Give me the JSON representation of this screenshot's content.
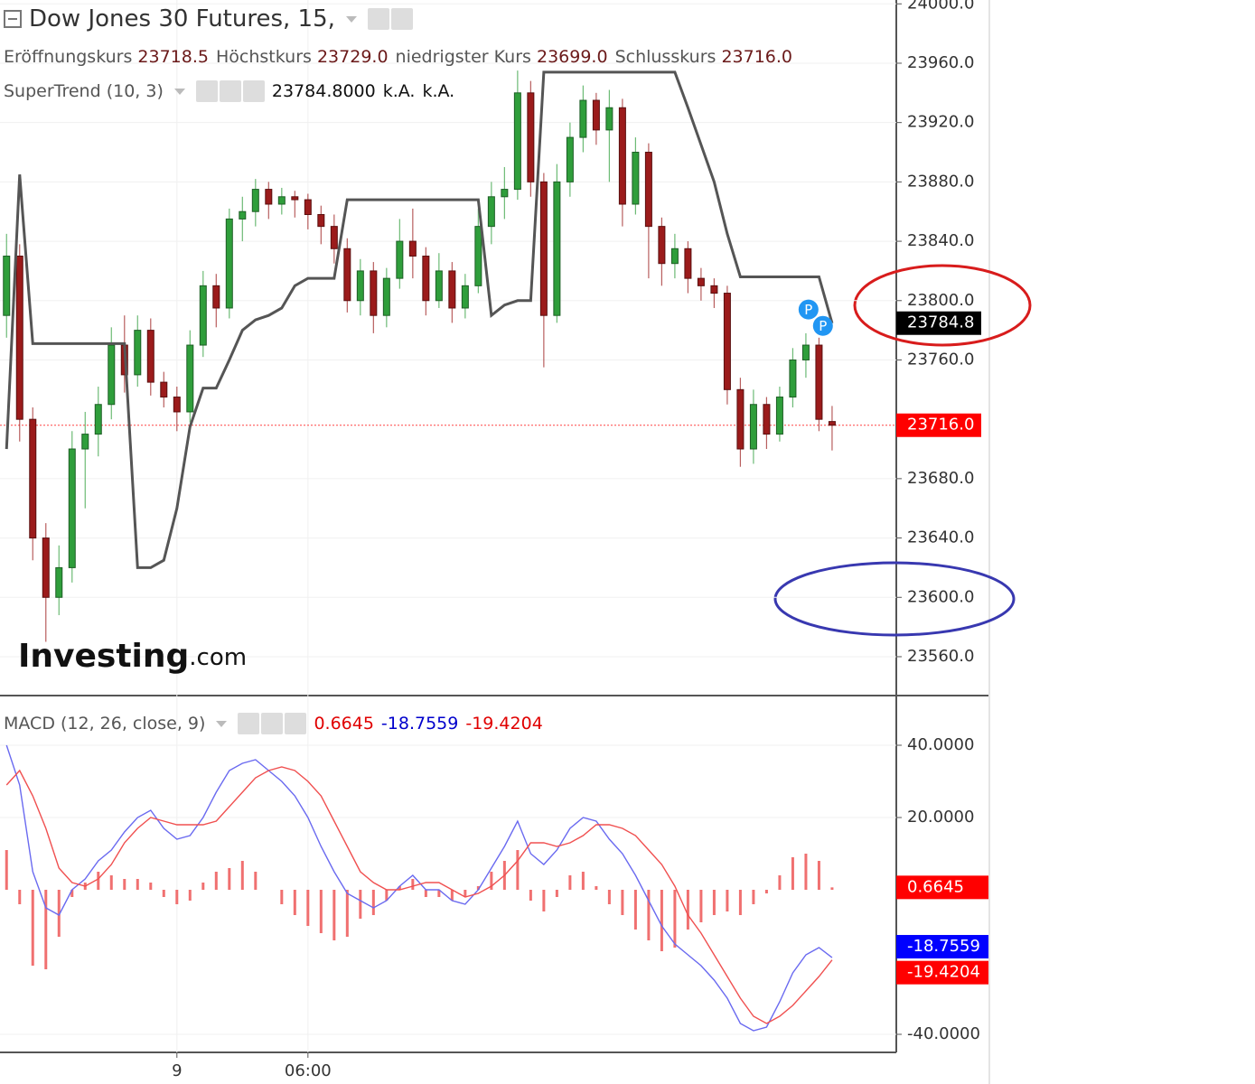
{
  "chart_data": [
    {
      "type": "candlestick",
      "title": "Dow Jones 30 Futures, 15,",
      "ohlc_legend": [
        [
          "Eröffnungskurs",
          "23718.5"
        ],
        [
          "Höchstkurs",
          "23729.0"
        ],
        [
          "niedrigster Kurs",
          "23699.0"
        ],
        [
          "Schlusskurs",
          "23716.0"
        ]
      ],
      "x": [
        0,
        1,
        2,
        3,
        4,
        5,
        6,
        7,
        8,
        9,
        10,
        11,
        12,
        13,
        14,
        15,
        16,
        17,
        18,
        19,
        20,
        21,
        22,
        23,
        24,
        25,
        26,
        27,
        28,
        29,
        30,
        31,
        32,
        33,
        34,
        35,
        36,
        37,
        38,
        39,
        40,
        41,
        42,
        43,
        44,
        45,
        46,
        47,
        48,
        49,
        50,
        51,
        52,
        53,
        54,
        55,
        56,
        57,
        58,
        59,
        60,
        61,
        62,
        63
      ],
      "open": [
        23790,
        23830,
        23720,
        23640,
        23600,
        23620,
        23700,
        23710,
        23730,
        23770,
        23750,
        23780,
        23745,
        23735,
        23725,
        23770,
        23810,
        23795,
        23855,
        23860,
        23875,
        23865,
        23870,
        23868,
        23858,
        23850,
        23835,
        23800,
        23820,
        23790,
        23815,
        23840,
        23830,
        23800,
        23820,
        23795,
        23810,
        23850,
        23870,
        23875,
        23940,
        23880,
        23790,
        23880,
        23910,
        23935,
        23915,
        23930,
        23865,
        23900,
        23850,
        23825,
        23835,
        23815,
        23810,
        23805,
        23740,
        23700,
        23730,
        23710,
        23735,
        23760,
        23770,
        23718.5
      ],
      "high": [
        23845,
        23838,
        23728,
        23650,
        23635,
        23712,
        23725,
        23742,
        23782,
        23790,
        23790,
        23788,
        23752,
        23742,
        23780,
        23820,
        23818,
        23862,
        23870,
        23882,
        23880,
        23876,
        23874,
        23872,
        23864,
        23858,
        23842,
        23828,
        23826,
        23822,
        23855,
        23862,
        23836,
        23832,
        23826,
        23818,
        23862,
        23880,
        23890,
        23955,
        23948,
        23886,
        23892,
        23920,
        23945,
        23940,
        23942,
        23936,
        23910,
        23906,
        23856,
        23845,
        23840,
        23822,
        23815,
        23810,
        23748,
        23740,
        23735,
        23742,
        23768,
        23778,
        23775,
        23729
      ],
      "low": [
        23775,
        23705,
        23625,
        23570,
        23588,
        23610,
        23660,
        23695,
        23720,
        23738,
        23742,
        23736,
        23728,
        23712,
        23718,
        23762,
        23782,
        23788,
        23840,
        23850,
        23855,
        23858,
        23856,
        23848,
        23838,
        23825,
        23792,
        23790,
        23778,
        23782,
        23808,
        23815,
        23790,
        23795,
        23785,
        23788,
        23805,
        23838,
        23855,
        23868,
        23870,
        23755,
        23785,
        23870,
        23900,
        23905,
        23880,
        23850,
        23858,
        23815,
        23810,
        23815,
        23805,
        23800,
        23795,
        23730,
        23688,
        23690,
        23700,
        23705,
        23728,
        23748,
        23712,
        23699
      ],
      "close": [
        23830,
        23720,
        23640,
        23600,
        23620,
        23700,
        23710,
        23730,
        23770,
        23750,
        23780,
        23745,
        23735,
        23725,
        23770,
        23810,
        23795,
        23855,
        23860,
        23875,
        23865,
        23870,
        23868,
        23858,
        23850,
        23835,
        23800,
        23820,
        23790,
        23815,
        23840,
        23830,
        23800,
        23820,
        23795,
        23810,
        23850,
        23870,
        23875,
        23940,
        23880,
        23790,
        23880,
        23910,
        23935,
        23915,
        23930,
        23865,
        23900,
        23850,
        23825,
        23835,
        23815,
        23810,
        23805,
        23740,
        23700,
        23730,
        23710,
        23735,
        23760,
        23770,
        23720,
        23716
      ],
      "up_color": "#2f9e3b",
      "down_color": "#9b1b1b",
      "xlim": [
        -0.5,
        67.9
      ],
      "ylim": [
        23533.8,
        24002.6
      ],
      "yticks": [
        {
          "value": 24000,
          "label": "24000.0"
        },
        {
          "value": 23960,
          "label": "23960.0"
        },
        {
          "value": 23920,
          "label": "23920.0"
        },
        {
          "value": 23880,
          "label": "23880.0"
        },
        {
          "value": 23840,
          "label": "23840.0"
        },
        {
          "value": 23800,
          "label": "23800.0"
        },
        {
          "value": 23760,
          "label": "23760.0"
        },
        {
          "value": 23680,
          "label": "23680.0"
        },
        {
          "value": 23640,
          "label": "23640.0"
        },
        {
          "value": 23600,
          "label": "23600.0"
        },
        {
          "value": 23560,
          "label": "23560.0"
        }
      ],
      "grid": true,
      "indicator": {
        "name": "SuperTrend (10, 3)",
        "legend_values": [
          "23784.8000",
          "k.A.",
          "k.A."
        ],
        "badge_label": "23784.8",
        "color": "#555555",
        "values": [
          23700,
          23885,
          23771,
          23771,
          23771,
          23771,
          23771,
          23771,
          23771,
          23771,
          23620,
          23620,
          23625,
          23660,
          23715,
          23741,
          23741,
          23760,
          23780,
          23787,
          23790,
          23795,
          23810,
          23815,
          23815,
          23815,
          23868,
          23868,
          23868,
          23868,
          23868,
          23868,
          23868,
          23868,
          23868,
          23868,
          23868,
          23790,
          23797,
          23800,
          23800,
          23954,
          23954,
          23954,
          23954,
          23954,
          23954,
          23954,
          23954,
          23954,
          23954,
          23954,
          23930,
          23905,
          23880,
          23845,
          23816,
          23816,
          23816,
          23816,
          23816,
          23816,
          23816,
          23784.8
        ]
      },
      "pivot_markers": [
        {
          "x": 61.2,
          "value": 23794,
          "label": "P"
        },
        {
          "x": 62.3,
          "value": 23783,
          "label": "P"
        }
      ],
      "watermark": [
        "Investing",
        ".com"
      ]
    },
    {
      "type": "macd",
      "title": "MACD (12, 26, close, 9)",
      "xlim": [
        -0.5,
        67.9
      ],
      "ylim": [
        -45,
        53.75
      ],
      "yticks": [
        {
          "value": 40,
          "label": "40.0000"
        },
        {
          "value": 20,
          "label": "20.0000"
        },
        {
          "value": -40,
          "label": "-40.0000"
        }
      ],
      "xticks": [
        {
          "value": 13,
          "label": "9"
        },
        {
          "value": 23,
          "label": "06:00"
        }
      ],
      "x": [
        0,
        1,
        2,
        3,
        4,
        5,
        6,
        7,
        8,
        9,
        10,
        11,
        12,
        13,
        14,
        15,
        16,
        17,
        18,
        19,
        20,
        21,
        22,
        23,
        24,
        25,
        26,
        27,
        28,
        29,
        30,
        31,
        32,
        33,
        34,
        35,
        36,
        37,
        38,
        39,
        40,
        41,
        42,
        43,
        44,
        45,
        46,
        47,
        48,
        49,
        50,
        51,
        52,
        53,
        54,
        55,
        56,
        57,
        58,
        59,
        60,
        61,
        62,
        63
      ],
      "series": [
        {
          "style": "bar",
          "color": "#f07070",
          "label_color": "#e00000",
          "badge_color": "#ff0000",
          "value_label": "0.6645",
          "values": [
            11,
            -4,
            -21,
            -22,
            -13,
            -2,
            2,
            5,
            4,
            3,
            3,
            2,
            -2,
            -4,
            -3,
            2,
            5,
            6,
            8,
            5,
            0,
            -4,
            -7,
            -10,
            -12,
            -14,
            -13,
            -8,
            -7,
            -3,
            1,
            3,
            -2,
            -2,
            -3,
            -2,
            1,
            5,
            8,
            11,
            -3,
            -6,
            -2,
            4,
            5,
            1,
            -4,
            -7,
            -11,
            -14,
            -17,
            -16,
            -11,
            -9,
            -7,
            -6,
            -7,
            -4,
            -1,
            4,
            9,
            10,
            8,
            0.6645
          ]
        },
        {
          "style": "line",
          "color": "#6a6af0",
          "label_color": "#0000cc",
          "badge_color": "#0000ff",
          "value_label": "-18.7559",
          "values": [
            40,
            29,
            5,
            -5,
            -7,
            0,
            3,
            8,
            11,
            16,
            20,
            22,
            17,
            14,
            15,
            20,
            27,
            33,
            35,
            36,
            33,
            30,
            26,
            20,
            12,
            5,
            -1,
            -3,
            -5,
            -3,
            1,
            4,
            0,
            0,
            -3,
            -4,
            0,
            6,
            12,
            19,
            10,
            7,
            11,
            17,
            20,
            19,
            14,
            10,
            4,
            -3,
            -10,
            -15,
            -18,
            -21,
            -25,
            -30,
            -37,
            -39,
            -38,
            -31,
            -23,
            -18,
            -16,
            -18.7559
          ]
        },
        {
          "style": "line",
          "color": "#f05050",
          "label_color": "#e00000",
          "badge_color": "#ff0000",
          "value_label": "-19.4204",
          "values": [
            29,
            33,
            26,
            17,
            6,
            2,
            1,
            3,
            7,
            13,
            17,
            20,
            19,
            18,
            18,
            18,
            19,
            23,
            27,
            31,
            33,
            34,
            33,
            30,
            26,
            19,
            12,
            5,
            2,
            0,
            0,
            1,
            2,
            2,
            0,
            -2,
            -1,
            1,
            4,
            8,
            13,
            13,
            12,
            13,
            15,
            18,
            18,
            17,
            15,
            11,
            7,
            1,
            -7,
            -12,
            -18,
            -24,
            -30,
            -35,
            -37,
            -35,
            -32,
            -28,
            -24,
            -19.4204
          ]
        }
      ]
    }
  ]
}
